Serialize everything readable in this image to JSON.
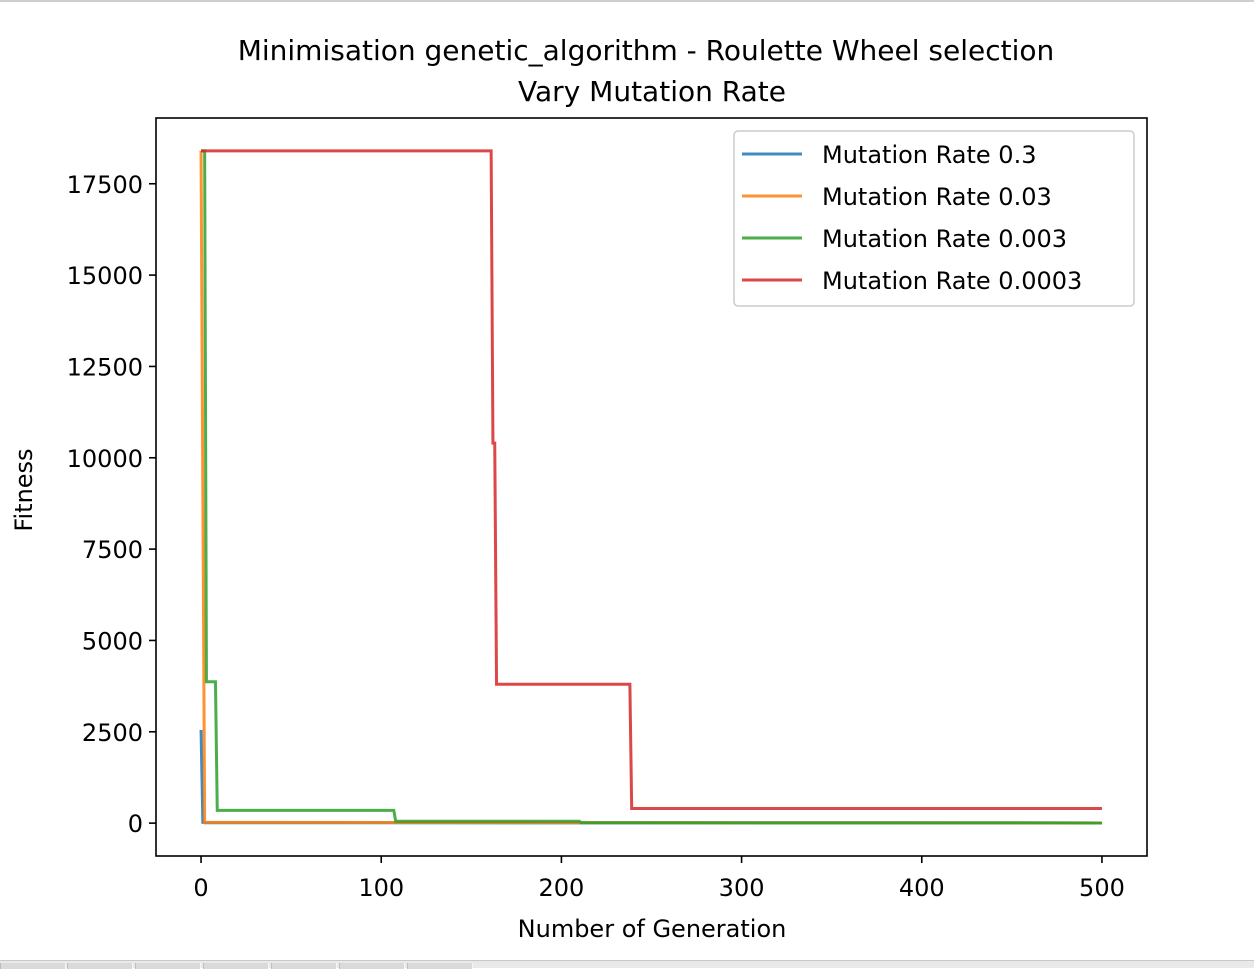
{
  "chart_data": {
    "type": "line",
    "title": "Minimisation genetic_algorithm - Roulette Wheel selection",
    "subtitle": "Vary Mutation Rate",
    "xlabel": "Number of Generation",
    "ylabel": "Fitness",
    "xlim": [
      -25,
      525
    ],
    "ylim": [
      -900,
      19300
    ],
    "x_ticks": [
      0,
      100,
      200,
      300,
      400,
      500
    ],
    "y_ticks": [
      0,
      2500,
      5000,
      7500,
      10000,
      12500,
      15000,
      17500
    ],
    "grid": false,
    "legend_position": "upper right",
    "series": [
      {
        "name": "Mutation Rate 0.3",
        "color": "#1f77b4",
        "points": [
          [
            0,
            2550
          ],
          [
            1,
            20
          ],
          [
            2,
            10
          ],
          [
            500,
            5
          ]
        ]
      },
      {
        "name": "Mutation Rate 0.03",
        "color": "#ff7f0e",
        "points": [
          [
            0,
            18400
          ],
          [
            1,
            9000
          ],
          [
            2,
            20
          ],
          [
            210,
            15
          ],
          [
            500,
            5
          ]
        ]
      },
      {
        "name": "Mutation Rate 0.003",
        "color": "#2ca02c",
        "points": [
          [
            0,
            18400
          ],
          [
            2,
            18400
          ],
          [
            3,
            3870
          ],
          [
            8,
            3870
          ],
          [
            9,
            350
          ],
          [
            107,
            350
          ],
          [
            108,
            50
          ],
          [
            210,
            50
          ],
          [
            211,
            10
          ],
          [
            500,
            5
          ]
        ]
      },
      {
        "name": "Mutation Rate 0.0003",
        "color": "#d62728",
        "points": [
          [
            0,
            18400
          ],
          [
            161,
            18400
          ],
          [
            162,
            10400
          ],
          [
            163,
            10400
          ],
          [
            164,
            3800
          ],
          [
            238,
            3800
          ],
          [
            239,
            400
          ],
          [
            500,
            400
          ]
        ]
      }
    ]
  }
}
